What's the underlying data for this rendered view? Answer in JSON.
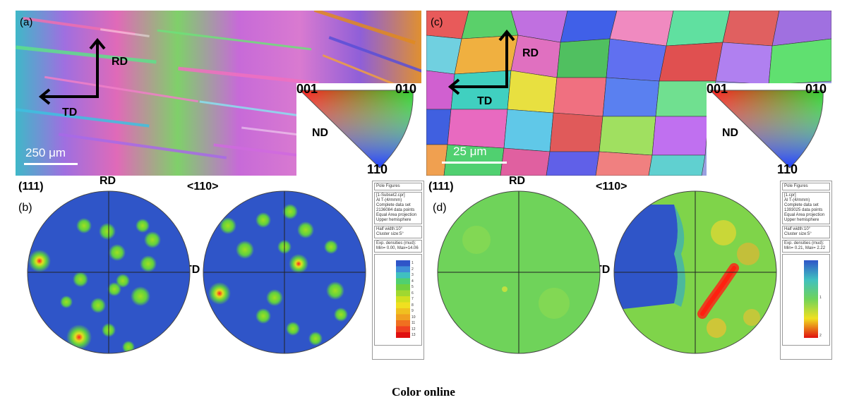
{
  "panel_a": {
    "label": "(a)",
    "rd": "RD",
    "td": "TD",
    "scale": "250 μm",
    "key": {
      "c001": "001",
      "c010": "010",
      "nd": "ND",
      "c110": "110"
    }
  },
  "panel_c": {
    "label": "(c)",
    "rd": "RD",
    "td": "TD",
    "scale": "25 μm",
    "key": {
      "c001": "001",
      "c010": "010",
      "nd": "ND",
      "c110": "110"
    }
  },
  "panel_b": {
    "label": "(b)",
    "plane_111": "(111)",
    "rd": "RD",
    "dir_110": "<110>",
    "td": "TD",
    "legend": {
      "title": "Pole Figures",
      "info": [
        "[1-Subset2.cpr]",
        "Al T-(4/mmm)",
        "Complete data set",
        "2136084 data points",
        "Equal Area projection",
        "Upper hemisphere"
      ],
      "halfwidth": [
        "Half width:10°",
        "Cluster size:5°"
      ],
      "densities": [
        "Exp. densities (mud):",
        "Min= 0.00, Max=14.06"
      ],
      "scale": [
        "1",
        "2",
        "3",
        "4",
        "5",
        "6",
        "7",
        "8",
        "9",
        "10",
        "11",
        "12",
        "13"
      ]
    }
  },
  "panel_d": {
    "label": "(d)",
    "plane_111": "(111)",
    "rd": "RD",
    "dir_110": "<110>",
    "td": "TD",
    "legend": {
      "title": "Pole Figures",
      "info": [
        "[1.cpr]",
        "Al T-(4/mmm)",
        "Complete data set",
        "1393025 data points",
        "Equal Area projection",
        "Upper hemisphere"
      ],
      "halfwidth": [
        "Half width:10°",
        "Cluster size:5°"
      ],
      "densities": [
        "Exp. densities (mud):",
        "Min= 0.21, Max= 2.22"
      ],
      "scale": [
        "1",
        "2"
      ]
    }
  },
  "caption": "Color online"
}
